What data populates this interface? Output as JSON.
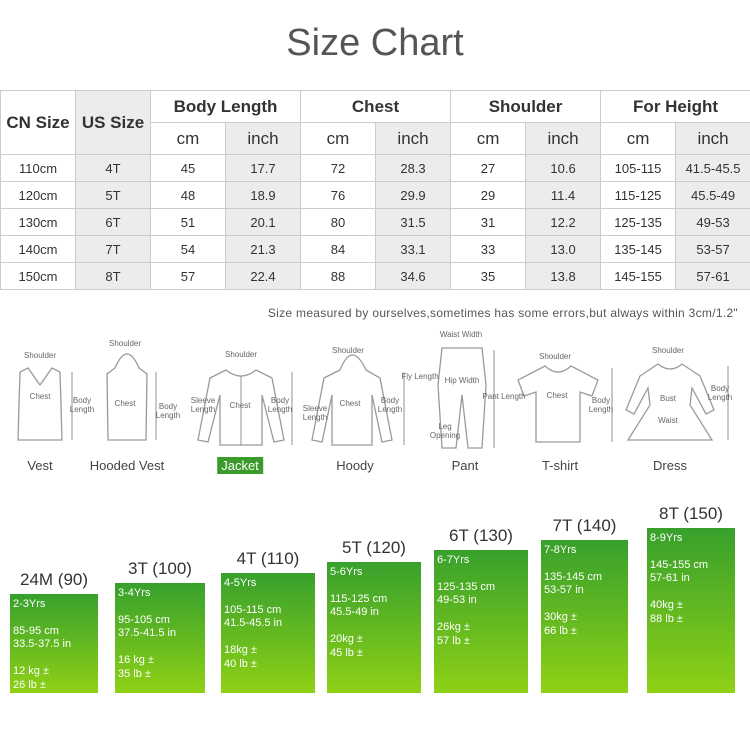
{
  "title": "Size Chart",
  "table": {
    "header": [
      "CN Size",
      "US Size",
      "Body Length",
      "Chest",
      "Shoulder",
      "For Height"
    ],
    "units": [
      "cm",
      "inch",
      "cm",
      "inch",
      "cm",
      "inch",
      "cm",
      "inch"
    ],
    "rows": [
      [
        "110cm",
        "4T",
        "45",
        "17.7",
        "72",
        "28.3",
        "27",
        "10.6",
        "105-115",
        "41.5-45.5"
      ],
      [
        "120cm",
        "5T",
        "48",
        "18.9",
        "76",
        "29.9",
        "29",
        "11.4",
        "115-125",
        "45.5-49"
      ],
      [
        "130cm",
        "6T",
        "51",
        "20.1",
        "80",
        "31.5",
        "31",
        "12.2",
        "125-135",
        "49-53"
      ],
      [
        "140cm",
        "7T",
        "54",
        "21.3",
        "84",
        "33.1",
        "33",
        "13.0",
        "135-145",
        "53-57"
      ],
      [
        "150cm",
        "8T",
        "57",
        "22.4",
        "88",
        "34.6",
        "35",
        "13.8",
        "145-155",
        "57-61"
      ]
    ]
  },
  "note": "Size measured by ourselves,sometimes has some errors,but always within 3cm/1.2\"",
  "garments": [
    {
      "name": "Vest",
      "labels": [
        "Shoulder",
        "Chest",
        "Body Length"
      ]
    },
    {
      "name": "Hooded Vest",
      "labels": [
        "Shoulder",
        "Chest",
        "Body Length"
      ]
    },
    {
      "name": "Jacket",
      "highlighted": true,
      "labels": [
        "Shoulder",
        "Sleeve Length",
        "Chest",
        "Body Length"
      ]
    },
    {
      "name": "Hoody",
      "labels": [
        "Shoulder",
        "Sleeve Length",
        "Chest",
        "Body Length"
      ]
    },
    {
      "name": "Pant",
      "labels": [
        "Waist Width",
        "Fly Length",
        "Hip Width",
        "Pant Length",
        "Leg Opening"
      ]
    },
    {
      "name": "T-shirt",
      "labels": [
        "Shoulder",
        "Chest",
        "Body Length"
      ]
    },
    {
      "name": "Dress",
      "labels": [
        "Shoulder",
        "Bust",
        "Waist",
        "Body Length"
      ]
    }
  ],
  "ages": [
    {
      "size": "24M (90)",
      "age": "2-3Yrs",
      "height_cm": "85-95 cm",
      "height_in": "33.5-37.5 in",
      "weight_kg": "12 kg ±",
      "weight_lb": "26 lb ±"
    },
    {
      "size": "3T (100)",
      "age": "3-4Yrs",
      "height_cm": "95-105 cm",
      "height_in": "37.5-41.5 in",
      "weight_kg": "16 kg ±",
      "weight_lb": "35 lb ±"
    },
    {
      "size": "4T (110)",
      "age": "4-5Yrs",
      "height_cm": "105-115 cm",
      "height_in": "41.5-45.5 in",
      "weight_kg": "18kg ±",
      "weight_lb": "40 lb ±"
    },
    {
      "size": "5T (120)",
      "age": "5-6Yrs",
      "height_cm": "115-125 cm",
      "height_in": "45.5-49 in",
      "weight_kg": "20kg ±",
      "weight_lb": "45 lb ±"
    },
    {
      "size": "6T (130)",
      "age": "6-7Yrs",
      "height_cm": "125-135 cm",
      "height_in": "49-53 in",
      "weight_kg": "26kg ±",
      "weight_lb": "57 lb ±"
    },
    {
      "size": "7T (140)",
      "age": "7-8Yrs",
      "height_cm": "135-145 cm",
      "height_in": "53-57 in",
      "weight_kg": "30kg ±",
      "weight_lb": "66 lb ±"
    },
    {
      "size": "8T (150)",
      "age": "8-9Yrs",
      "height_cm": "145-155 cm",
      "height_in": "57-61 in",
      "weight_kg": "40kg ±",
      "weight_lb": "88 lb ±"
    }
  ]
}
